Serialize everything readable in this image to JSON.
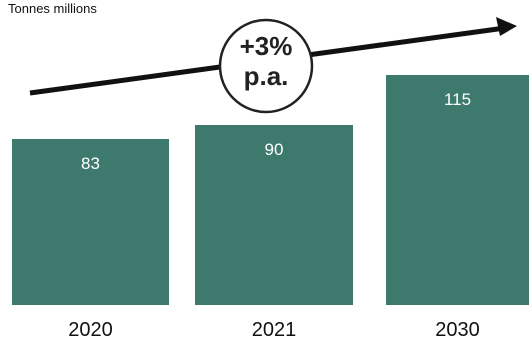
{
  "chart_data": {
    "type": "bar",
    "unit_label": "Tonnes millions",
    "categories": [
      "2020",
      "2021",
      "2030"
    ],
    "values": [
      83,
      90,
      115
    ],
    "data_labels": [
      "83",
      "90",
      "115"
    ],
    "annotation": {
      "line1": "+3%",
      "line2": "p.a."
    },
    "trend_arrow": "rising",
    "bar_color": "#3d7a6d",
    "grid": false,
    "legend": "none"
  }
}
